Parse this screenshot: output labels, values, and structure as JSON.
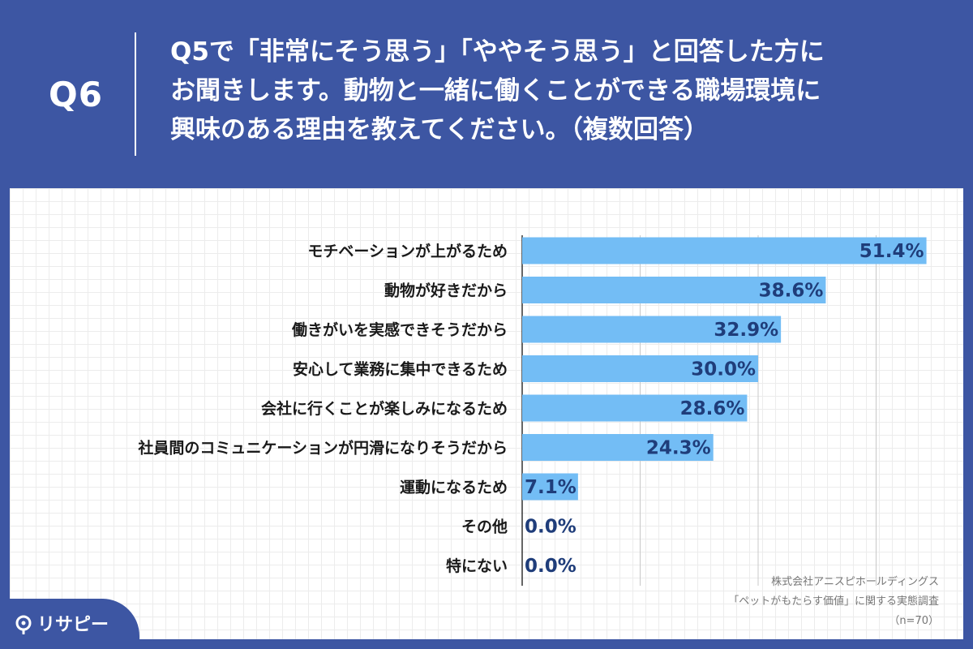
{
  "question": {
    "number": "Q6",
    "lines": [
      "Q5で「非常にそう思う」「ややそう思う」と回答した方に",
      "お聞きします。動物と一緒に働くことができる職場環境に",
      "興味のある理由を教えてください。（複数回答）"
    ]
  },
  "chart_data": {
    "type": "bar",
    "orientation": "horizontal",
    "categories": [
      "モチベーションが上がるため",
      "動物が好きだから",
      "働きがいを実感できそうだから",
      "安心して業務に集中できるため",
      "会社に行くことが楽しみになるため",
      "社員間のコミュニケーションが円滑になりそうだから",
      "運動になるため",
      "その他",
      "特にない"
    ],
    "values": [
      51.4,
      38.6,
      32.9,
      30.0,
      28.6,
      24.3,
      7.1,
      0.0,
      0.0
    ],
    "value_labels": [
      "51.4%",
      "38.6%",
      "32.9%",
      "30.0%",
      "28.6%",
      "24.3%",
      "7.1%",
      "0.0%",
      "0.0%"
    ],
    "xlim": [
      0,
      60
    ],
    "grid": true,
    "bar_color": "#73bdf5"
  },
  "source": {
    "company": "株式会社アニスピホールディングス",
    "survey": "「ペットがもたらす価値」に関する実態調査",
    "sample": "（n=70）"
  },
  "brand": {
    "name": "リサピー"
  },
  "colors": {
    "background": "#3d56a3",
    "bar": "#73bdf5",
    "value_text": "#1f3d7a"
  }
}
